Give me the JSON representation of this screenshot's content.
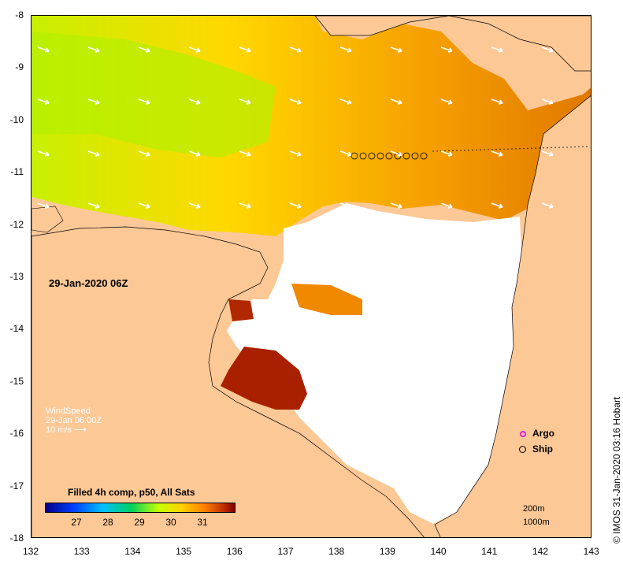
{
  "map": {
    "timestamp": "29-Jan-2020 06Z",
    "lat_labels": [
      "-8",
      "-9",
      "-10",
      "-11",
      "-12",
      "-13",
      "-14",
      "-15",
      "-16",
      "-17",
      "-18"
    ],
    "lon_labels": [
      "132",
      "133",
      "134",
      "135",
      "136",
      "137",
      "138",
      "139",
      "140",
      "141",
      "142",
      "143"
    ],
    "wind_legend": {
      "title": "WindSpeed",
      "time": "29-Jan 06:00Z",
      "scale": "10 m/s"
    },
    "colorbar": {
      "title": "Filled 4h comp, p50, All Sats",
      "ticks": [
        "27",
        "28",
        "29",
        "30",
        "31"
      ],
      "range": [
        26,
        32
      ]
    },
    "legend": {
      "argo": "Argo",
      "ship": "Ship"
    },
    "scale_labels": [
      "200m",
      "1000m"
    ],
    "credit": "© IMOS 31-Jan-2020 03:16 Hobart",
    "colors": {
      "land": "#fcc896",
      "cloud": "#ffffff",
      "argo": "#e020e0",
      "ship": "#000000"
    }
  }
}
